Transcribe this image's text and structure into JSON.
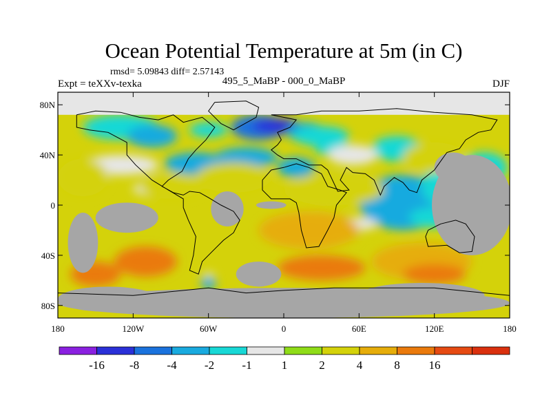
{
  "chart_data": {
    "type": "heatmap",
    "title": "Ocean Potential Temperature at 5m (in C)",
    "stats_line": "rmsd= 5.09843 diff= 2.57143",
    "left_label": "Expt = teXXv-texka",
    "center_label": "495_5_MaBP - 000_0_MaBP",
    "right_label": "DJF",
    "xlabel": "",
    "ylabel": "",
    "xlim": [
      -180,
      180
    ],
    "ylim": [
      -90,
      90
    ],
    "x_ticks": [
      {
        "value": -180,
        "label": "180"
      },
      {
        "value": -120,
        "label": "120W"
      },
      {
        "value": -60,
        "label": "60W"
      },
      {
        "value": 0,
        "label": "0"
      },
      {
        "value": 60,
        "label": "60E"
      },
      {
        "value": 120,
        "label": "120E"
      },
      {
        "value": 180,
        "label": "180"
      }
    ],
    "y_ticks": [
      {
        "value": 80,
        "label": "80N"
      },
      {
        "value": 40,
        "label": "40N"
      },
      {
        "value": 0,
        "label": "0"
      },
      {
        "value": -40,
        "label": "40S"
      },
      {
        "value": -80,
        "label": "80S"
      }
    ],
    "colorbar": {
      "colors": [
        "#8a20e0",
        "#2a30d8",
        "#1a72dd",
        "#19aadf",
        "#18d8d6",
        "#e6e6e6",
        "#8fdc18",
        "#d4d20a",
        "#e6ad0a",
        "#ea7a0c",
        "#e64a12",
        "#da300e"
      ],
      "levels": [
        -16,
        -8,
        -4,
        -2,
        -1,
        1,
        2,
        4,
        8,
        16
      ],
      "level_labels": [
        "-16",
        "-8",
        "-4",
        "-2",
        "-1",
        "1",
        "2",
        "4",
        "8",
        "16"
      ]
    },
    "land_color": "#a6a6a6",
    "no_change_color": "#e6e6e6",
    "field_blobs": [
      {
        "lon": -130,
        "lat": 62,
        "rx": 30,
        "ry": 10,
        "value": -1.5
      },
      {
        "lon": -105,
        "lat": 55,
        "rx": 20,
        "ry": 9,
        "value": -2.5
      },
      {
        "lon": -60,
        "lat": 60,
        "rx": 15,
        "ry": 6,
        "value": -1.5
      },
      {
        "lon": -20,
        "lat": 62,
        "rx": 22,
        "ry": 10,
        "value": -4.5
      },
      {
        "lon": -5,
        "lat": 63,
        "rx": 20,
        "ry": 6,
        "value": -10
      },
      {
        "lon": 18,
        "lat": 58,
        "rx": 15,
        "ry": 8,
        "value": -3
      },
      {
        "lon": -70,
        "lat": 33,
        "rx": 25,
        "ry": 9,
        "value": -3
      },
      {
        "lon": -30,
        "lat": 38,
        "rx": 25,
        "ry": 8,
        "value": -2.5
      },
      {
        "lon": 10,
        "lat": 30,
        "rx": 15,
        "ry": 8,
        "value": -3
      },
      {
        "lon": 30,
        "lat": 55,
        "rx": 22,
        "ry": 8,
        "value": -2
      },
      {
        "lon": 40,
        "lat": 45,
        "rx": 15,
        "ry": 6,
        "value": -1.5
      },
      {
        "lon": 90,
        "lat": 45,
        "rx": 20,
        "ry": 10,
        "value": -1.5
      },
      {
        "lon": 95,
        "lat": 2,
        "rx": 35,
        "ry": 22,
        "value": -3
      },
      {
        "lon": 140,
        "lat": 15,
        "rx": 30,
        "ry": 20,
        "value": -2
      },
      {
        "lon": 160,
        "lat": 30,
        "rx": 18,
        "ry": 12,
        "value": -1.5
      },
      {
        "lon": 120,
        "lat": -10,
        "rx": 20,
        "ry": 8,
        "value": -1.5
      },
      {
        "lon": -130,
        "lat": 32,
        "rx": 30,
        "ry": 8,
        "value": 0
      },
      {
        "lon": -100,
        "lat": 13,
        "rx": 20,
        "ry": 6,
        "value": 0
      },
      {
        "lon": 55,
        "lat": 40,
        "rx": 20,
        "ry": 8,
        "value": 0
      },
      {
        "lon": 60,
        "lat": -15,
        "rx": 15,
        "ry": 5,
        "value": 0
      },
      {
        "lon": -160,
        "lat": 22,
        "rx": 20,
        "ry": 15,
        "value": 3.2
      },
      {
        "lon": -90,
        "lat": 15,
        "rx": 25,
        "ry": 10,
        "value": 3
      },
      {
        "lon": -40,
        "lat": 22,
        "rx": 30,
        "ry": 12,
        "value": 3
      },
      {
        "lon": 40,
        "lat": 12,
        "rx": 40,
        "ry": 12,
        "value": 3
      },
      {
        "lon": 120,
        "lat": 38,
        "rx": 25,
        "ry": 12,
        "value": 3
      },
      {
        "lon": 20,
        "lat": -20,
        "rx": 40,
        "ry": 15,
        "value": 5
      },
      {
        "lon": 110,
        "lat": -45,
        "rx": 40,
        "ry": 15,
        "value": 6
      },
      {
        "lon": -150,
        "lat": -55,
        "rx": 20,
        "ry": 10,
        "value": 9
      },
      {
        "lon": -110,
        "lat": -45,
        "rx": 25,
        "ry": 12,
        "value": 10
      },
      {
        "lon": 30,
        "lat": -50,
        "rx": 35,
        "ry": 10,
        "value": 10
      },
      {
        "lon": 120,
        "lat": -55,
        "rx": 25,
        "ry": 8,
        "value": 9
      },
      {
        "lon": -60,
        "lat": -62,
        "rx": 6,
        "ry": 5,
        "value": -3
      },
      {
        "lon": -60,
        "lat": -56,
        "rx": 5,
        "ry": 2,
        "value": 0
      }
    ],
    "land_masks": [
      {
        "lon": 150,
        "lat": 0,
        "rx": 32,
        "ry": 40,
        "rot": 0
      },
      {
        "lon": 135,
        "lat": 30,
        "rx": 15,
        "ry": 12,
        "rot": 0
      },
      {
        "lon": -160,
        "lat": -30,
        "rx": 12,
        "ry": 24,
        "rot": 0
      },
      {
        "lon": -125,
        "lat": -10,
        "rx": 25,
        "ry": 12,
        "rot": 0
      },
      {
        "lon": -45,
        "lat": -3,
        "rx": 13,
        "ry": 14,
        "rot": 0
      },
      {
        "lon": -20,
        "lat": -55,
        "rx": 18,
        "ry": 10,
        "rot": 0
      },
      {
        "lon": -10,
        "lat": 0,
        "rx": 12,
        "ry": 3,
        "rot": 0
      },
      {
        "lon": 0,
        "lat": -78,
        "rx": 180,
        "ry": 12,
        "rot": 0
      },
      {
        "lon": 110,
        "lat": -72,
        "rx": 50,
        "ry": 10,
        "rot": 0
      },
      {
        "lon": -140,
        "lat": -75,
        "rx": 40,
        "ry": 10,
        "rot": 0
      }
    ],
    "north_cap_lat": 72,
    "coastlines": [
      [
        [
          -165,
          72
        ],
        [
          -150,
          75
        ],
        [
          -130,
          74
        ],
        [
          -115,
          70
        ],
        [
          -100,
          68
        ],
        [
          -88,
          72
        ],
        [
          -80,
          66
        ],
        [
          -65,
          70
        ],
        [
          -55,
          62
        ],
        [
          -62,
          52
        ],
        [
          -70,
          44
        ],
        [
          -76,
          37
        ],
        [
          -81,
          27
        ],
        [
          -92,
          20
        ],
        [
          -97,
          15
        ],
        [
          -88,
          10
        ],
        [
          -80,
          8
        ],
        [
          -75,
          11
        ],
        [
          -67,
          10
        ],
        [
          -60,
          6
        ],
        [
          -50,
          0
        ],
        [
          -40,
          -5
        ],
        [
          -35,
          -12
        ],
        [
          -40,
          -22
        ],
        [
          -48,
          -28
        ],
        [
          -58,
          -38
        ],
        [
          -65,
          -45
        ],
        [
          -68,
          -55
        ],
        [
          -75,
          -52
        ],
        [
          -72,
          -40
        ],
        [
          -70,
          -25
        ],
        [
          -76,
          -12
        ],
        [
          -80,
          -2
        ],
        [
          -80,
          5
        ],
        [
          -92,
          12
        ],
        [
          -105,
          20
        ],
        [
          -118,
          32
        ],
        [
          -125,
          40
        ],
        [
          -125,
          50
        ],
        [
          -140,
          58
        ],
        [
          -155,
          60
        ],
        [
          -165,
          62
        ],
        [
          -165,
          72
        ]
      ],
      [
        [
          -55,
          82
        ],
        [
          -30,
          83
        ],
        [
          -20,
          78
        ],
        [
          -22,
          70
        ],
        [
          -40,
          60
        ],
        [
          -50,
          65
        ],
        [
          -60,
          75
        ],
        [
          -55,
          82
        ]
      ],
      [
        [
          -10,
          72
        ],
        [
          10,
          72
        ],
        [
          30,
          75
        ],
        [
          60,
          75
        ],
        [
          90,
          77
        ],
        [
          120,
          74
        ],
        [
          150,
          72
        ],
        [
          170,
          68
        ],
        [
          165,
          60
        ],
        [
          155,
          58
        ],
        [
          145,
          52
        ],
        [
          140,
          45
        ],
        [
          130,
          42
        ],
        [
          125,
          35
        ],
        [
          120,
          28
        ],
        [
          110,
          20
        ],
        [
          106,
          10
        ],
        [
          100,
          12
        ],
        [
          95,
          18
        ],
        [
          88,
          22
        ],
        [
          80,
          15
        ],
        [
          77,
          8
        ],
        [
          72,
          20
        ],
        [
          65,
          25
        ],
        [
          55,
          26
        ],
        [
          50,
          30
        ],
        [
          45,
          20
        ],
        [
          52,
          12
        ],
        [
          43,
          11
        ],
        [
          35,
          28
        ],
        [
          30,
          32
        ],
        [
          20,
          32
        ],
        [
          10,
          37
        ],
        [
          0,
          37
        ],
        [
          -5,
          40
        ],
        [
          -10,
          44
        ],
        [
          -5,
          48
        ],
        [
          -2,
          52
        ],
        [
          -5,
          58
        ],
        [
          5,
          62
        ],
        [
          10,
          68
        ],
        [
          -10,
          72
        ]
      ],
      [
        [
          -17,
          20
        ],
        [
          -17,
          12
        ],
        [
          -10,
          5
        ],
        [
          5,
          5
        ],
        [
          10,
          2
        ],
        [
          12,
          -6
        ],
        [
          14,
          -20
        ],
        [
          18,
          -34
        ],
        [
          28,
          -33
        ],
        [
          35,
          -20
        ],
        [
          40,
          -10
        ],
        [
          42,
          0
        ],
        [
          50,
          10
        ],
        [
          45,
          12
        ],
        [
          35,
          15
        ],
        [
          30,
          25
        ],
        [
          20,
          30
        ],
        [
          10,
          33
        ],
        [
          0,
          30
        ],
        [
          -10,
          28
        ],
        [
          -17,
          20
        ]
      ],
      [
        [
          115,
          -20
        ],
        [
          125,
          -15
        ],
        [
          137,
          -12
        ],
        [
          145,
          -15
        ],
        [
          152,
          -25
        ],
        [
          150,
          -37
        ],
        [
          140,
          -38
        ],
        [
          130,
          -32
        ],
        [
          115,
          -33
        ],
        [
          113,
          -25
        ],
        [
          115,
          -20
        ]
      ],
      [
        [
          -180,
          -70
        ],
        [
          -120,
          -72
        ],
        [
          -60,
          -66
        ],
        [
          -30,
          -70
        ],
        [
          0,
          -68
        ],
        [
          40,
          -66
        ],
        [
          80,
          -66
        ],
        [
          120,
          -66
        ],
        [
          160,
          -70
        ],
        [
          180,
          -72
        ]
      ]
    ]
  }
}
